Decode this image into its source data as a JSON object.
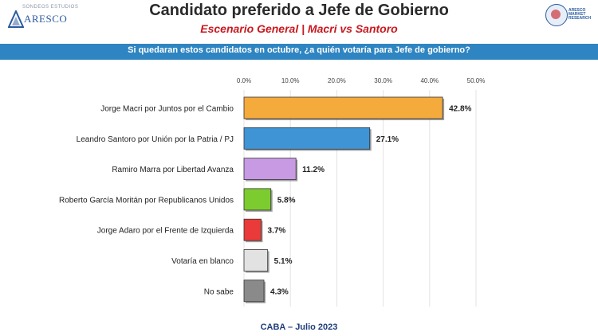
{
  "header": {
    "logo_left_tagline": "SONDEOS ESTUDIOS",
    "logo_left_name": "ARESCO",
    "title": "Candidato preferido a Jefe de Gobierno",
    "subtitle": "Escenario General | Macri vs Santoro",
    "logo_right_text": "ARESCO MARKET RESEARCH",
    "question": "Si quedaran estos candidatos en octubre, ¿a quién votaría para Jefe de gobierno?"
  },
  "footer": {
    "text": "CABA – Julio 2023"
  },
  "chart_data": {
    "type": "bar",
    "orientation": "horizontal",
    "categories": [
      "Jorge Macri por Juntos por el Cambio",
      "Leandro Santoro por Unión por la Patria / PJ",
      "Ramiro Marra por Libertad Avanza",
      "Roberto García Moritán por Republicanos Unidos",
      "Jorge Adaro por el Frente de Izquierda",
      "Votaría en blanco",
      "No sabe"
    ],
    "values": [
      42.8,
      27.1,
      11.2,
      5.8,
      3.7,
      5.1,
      4.3
    ],
    "value_labels": [
      "42.8%",
      "27.1%",
      "11.2%",
      "5.8%",
      "3.7%",
      "5.1%",
      "4.3%"
    ],
    "colors": [
      "#f5aa3c",
      "#3f94d6",
      "#c79ae3",
      "#7ccc30",
      "#ea3a3a",
      "#e2e2e2",
      "#8a8a8a"
    ],
    "xlim": [
      0,
      50
    ],
    "ticks": [
      0,
      10,
      20,
      30,
      40,
      50
    ],
    "tick_labels": [
      "0.0%",
      "10.0%",
      "20.0%",
      "30.0%",
      "40.0%",
      "50.0%"
    ],
    "grid": true,
    "legend": "none"
  }
}
